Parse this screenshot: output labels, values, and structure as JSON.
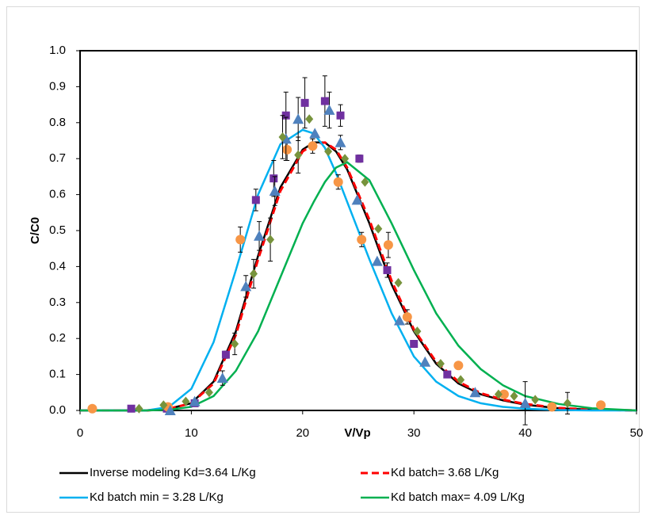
{
  "chart_data": {
    "type": "scatter",
    "x_label": "V/Vp",
    "y_label": "C/C0",
    "xlim": [
      0,
      50
    ],
    "xticks": [
      0,
      10,
      20,
      30,
      40,
      50
    ],
    "ylim": [
      0,
      1
    ],
    "yticks": [
      {
        "value": 0,
        "label": "0.0"
      },
      {
        "value": 0.1,
        "label": "0.1"
      },
      {
        "value": 0.2,
        "label": "0.2"
      },
      {
        "value": 0.3,
        "label": "0.3"
      },
      {
        "value": 0.4,
        "label": "0.4"
      },
      {
        "value": 0.5,
        "label": "0.5"
      },
      {
        "value": 0.6,
        "label": "0.6"
      },
      {
        "value": 0.7,
        "label": "0.7"
      },
      {
        "value": 0.8,
        "label": "0.8"
      },
      {
        "value": 0.9,
        "label": "0.9"
      },
      {
        "value": 1,
        "label": "1.0"
      }
    ],
    "legend": "bottom",
    "series": [
      {
        "marker": "square",
        "color": "#7030a0",
        "x": [
          4.6,
          7.8,
          10.3,
          13.1,
          15.8,
          17.4,
          18.5,
          20.2,
          22.0,
          23.4,
          25.1,
          27.6,
          30.0,
          33.0
        ],
        "values": [
          0.005,
          0.005,
          0.02,
          0.155,
          0.585,
          0.645,
          0.82,
          0.855,
          0.86,
          0.82,
          0.7,
          0.39,
          0.185,
          0.1
        ],
        "errors": [
          0,
          0,
          0,
          0.01,
          0.03,
          0.05,
          0.065,
          0.07,
          0.07,
          0.03,
          0.01,
          0.02,
          0.01,
          0.005
        ]
      },
      {
        "marker": "circle",
        "color": "#f79646",
        "x": [
          1.1,
          7.9,
          14.4,
          18.6,
          20.9,
          23.2,
          25.3,
          27.7,
          29.4,
          34.0,
          38.1,
          42.4,
          46.8
        ],
        "values": [
          0.005,
          0.01,
          0.475,
          0.725,
          0.735,
          0.635,
          0.475,
          0.46,
          0.26,
          0.125,
          0.045,
          0.01,
          0.015
        ],
        "errors": [
          0,
          0,
          0.035,
          0.03,
          0.02,
          0.02,
          0.02,
          0.035,
          0.02,
          0,
          0,
          0,
          0
        ]
      },
      {
        "marker": "triangle",
        "color": "#4f81bd",
        "x": [
          8.1,
          10.3,
          12.8,
          14.9,
          16.1,
          17.5,
          18.5,
          19.6,
          21.1,
          22.4,
          23.4,
          24.9,
          26.7,
          28.7,
          31.0,
          35.5,
          40.0
        ],
        "values": [
          0.0,
          0.025,
          0.09,
          0.345,
          0.485,
          0.61,
          0.755,
          0.81,
          0.77,
          0.835,
          0.745,
          0.585,
          0.415,
          0.25,
          0.135,
          0.05,
          0.02
        ],
        "errors": [
          0,
          0,
          0.02,
          0.03,
          0.04,
          0.04,
          0.06,
          0.06,
          0,
          0.05,
          0.02,
          0,
          0,
          0,
          0,
          0,
          0.06
        ]
      },
      {
        "marker": "diamond",
        "color": "#77933c",
        "x": [
          5.3,
          7.5,
          9.5,
          11.6,
          13.9,
          15.6,
          17.1,
          18.2,
          19.6,
          20.6,
          22.3,
          23.8,
          25.6,
          26.8,
          28.6,
          30.3,
          32.4,
          34.2,
          37.6,
          39.0,
          40.9,
          43.8
        ],
        "values": [
          0.005,
          0.015,
          0.025,
          0.05,
          0.185,
          0.38,
          0.475,
          0.76,
          0.71,
          0.81,
          0.72,
          0.7,
          0.635,
          0.505,
          0.355,
          0.22,
          0.13,
          0.085,
          0.045,
          0.04,
          0.03,
          0.02
        ],
        "errors": [
          0,
          0,
          0,
          0,
          0.03,
          0.04,
          0.06,
          0.06,
          0.05,
          0,
          0,
          0,
          0,
          0,
          0,
          0,
          0,
          0,
          0,
          0,
          0,
          0.03
        ]
      },
      {
        "name": "Inverse modeling Kd=3.64 L/Kg",
        "line": "solid",
        "color": "#000000",
        "x": [
          0,
          6,
          8,
          10,
          12,
          14,
          16,
          18,
          20,
          21,
          22,
          23,
          24,
          26,
          28,
          30,
          32,
          34,
          36,
          38,
          40,
          43,
          46,
          50
        ],
        "values": [
          0,
          0,
          0.005,
          0.02,
          0.08,
          0.22,
          0.43,
          0.62,
          0.725,
          0.745,
          0.745,
          0.72,
          0.67,
          0.52,
          0.35,
          0.22,
          0.13,
          0.075,
          0.045,
          0.028,
          0.016,
          0.006,
          0.002,
          0
        ]
      },
      {
        "name": "Kd batch= 3.68 L/Kg",
        "line": "dashed",
        "color": "#ff0000",
        "x": [
          0,
          6,
          8,
          10,
          12,
          14,
          16,
          18,
          20,
          21,
          22,
          23,
          24,
          26,
          28,
          30,
          32,
          34,
          36,
          38,
          40,
          43,
          46,
          50
        ],
        "values": [
          0,
          0,
          0.005,
          0.02,
          0.075,
          0.21,
          0.42,
          0.61,
          0.72,
          0.74,
          0.745,
          0.725,
          0.675,
          0.53,
          0.36,
          0.225,
          0.135,
          0.08,
          0.048,
          0.03,
          0.018,
          0.007,
          0.002,
          0
        ]
      },
      {
        "name": "Kd batch min = 3.28 L/Kg",
        "line": "solid",
        "color": "#00b0f0",
        "x": [
          0,
          6,
          8,
          10,
          12,
          14,
          16,
          18,
          20,
          21,
          22,
          23,
          24,
          26,
          28,
          30,
          32,
          34,
          36,
          38,
          40,
          43,
          46,
          50
        ],
        "values": [
          0,
          0,
          0.01,
          0.06,
          0.19,
          0.39,
          0.6,
          0.74,
          0.78,
          0.77,
          0.73,
          0.66,
          0.58,
          0.42,
          0.27,
          0.15,
          0.08,
          0.04,
          0.02,
          0.01,
          0.005,
          0.001,
          0,
          0
        ]
      },
      {
        "name": "Kd batch max= 4.09 L/Kg",
        "line": "solid",
        "color": "#00b050",
        "x": [
          0,
          6,
          8,
          10,
          12,
          14,
          16,
          18,
          20,
          21,
          22,
          23,
          24,
          26,
          28,
          30,
          32,
          34,
          36,
          38,
          40,
          43,
          46,
          50
        ],
        "values": [
          0,
          0,
          0.002,
          0.01,
          0.04,
          0.11,
          0.22,
          0.37,
          0.52,
          0.58,
          0.635,
          0.675,
          0.69,
          0.64,
          0.52,
          0.39,
          0.27,
          0.18,
          0.115,
          0.07,
          0.04,
          0.018,
          0.006,
          0
        ]
      }
    ]
  }
}
